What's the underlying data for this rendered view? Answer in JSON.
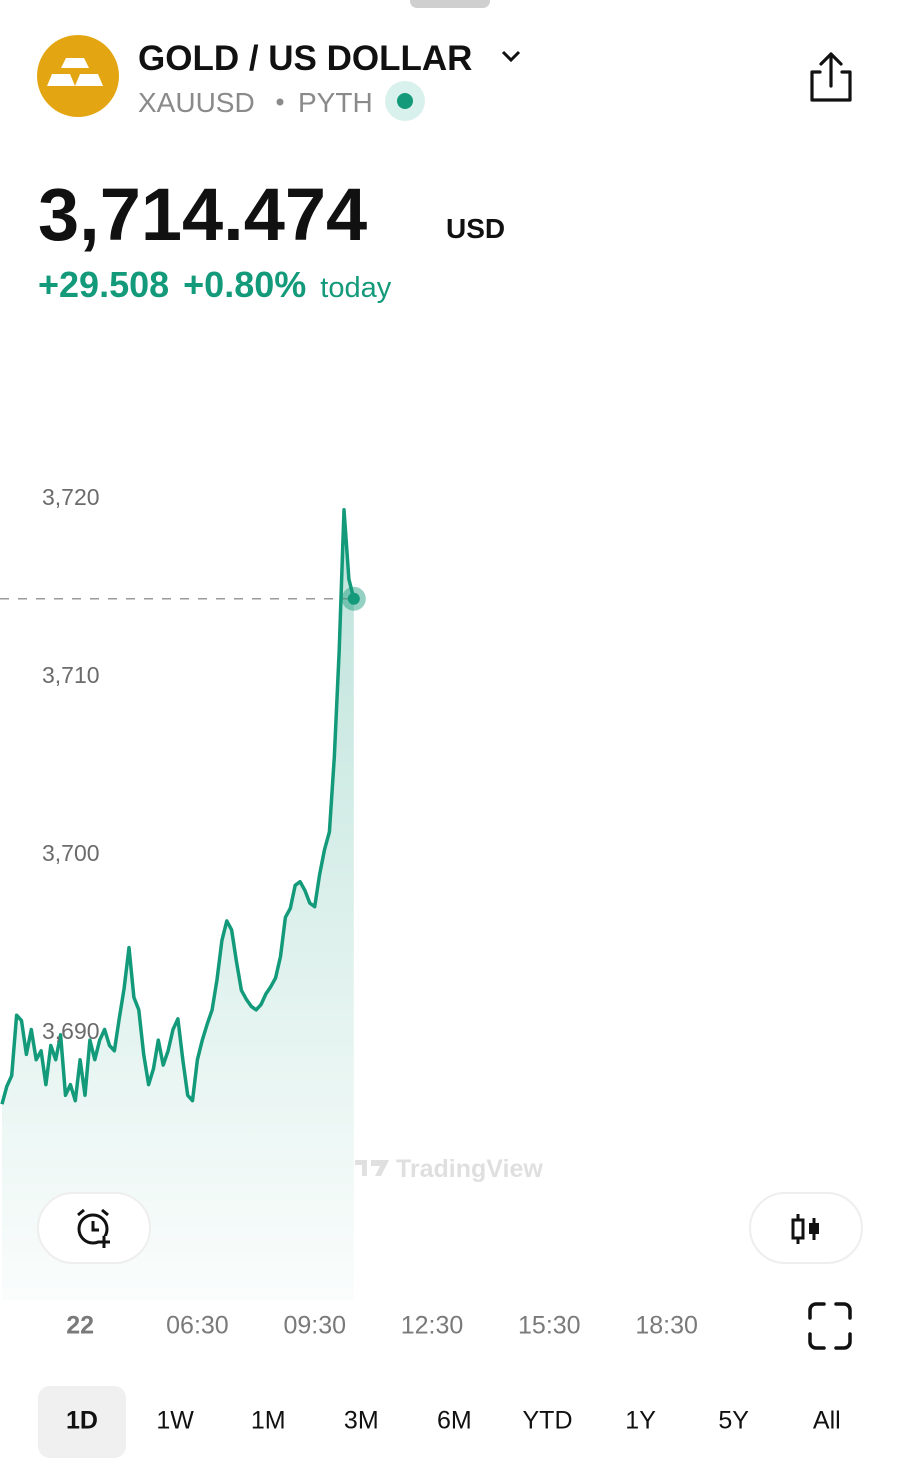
{
  "header": {
    "title": "GOLD / US DOLLAR",
    "symbol": "XAUUSD",
    "source": "PYTH"
  },
  "price": {
    "value": "3,714.474",
    "currency": "USD",
    "change": "+29.508",
    "change_percent": "+0.80%",
    "period": "today"
  },
  "chart_data": {
    "type": "line",
    "x": [
      1.5,
      1.625,
      1.75,
      1.875,
      2,
      2.125,
      2.25,
      2.375,
      2.5,
      2.625,
      2.75,
      2.875,
      3,
      3.125,
      3.25,
      3.375,
      3.5,
      3.625,
      3.75,
      3.875,
      4,
      4.125,
      4.25,
      4.375,
      4.5,
      4.625,
      4.75,
      4.875,
      5,
      5.125,
      5.25,
      5.375,
      5.5,
      5.625,
      5.75,
      5.875,
      6,
      6.125,
      6.25,
      6.375,
      6.5,
      6.625,
      6.75,
      6.875,
      7,
      7.125,
      7.25,
      7.375,
      7.5,
      7.625,
      7.75,
      7.875,
      8,
      8.125,
      8.25,
      8.375,
      8.5,
      8.625,
      8.75,
      8.875,
      9,
      9.125,
      9.25,
      9.375,
      9.5,
      9.625,
      9.75,
      9.875,
      10,
      10.125,
      10.25,
      10.375,
      10.5
    ],
    "series": [
      {
        "color": "#139a7a",
        "values": [
          3686.0,
          3687.0,
          3687.6,
          3691.0,
          3690.7,
          3688.8,
          3690.2,
          3688.5,
          3689.0,
          3687.1,
          3689.3,
          3688.5,
          3689.9,
          3686.5,
          3687.1,
          3686.2,
          3688.5,
          3686.5,
          3689.6,
          3688.5,
          3689.6,
          3690.2,
          3689.3,
          3689.0,
          3690.8,
          3692.5,
          3694.8,
          3692.0,
          3691.3,
          3688.8,
          3687.1,
          3688.0,
          3689.6,
          3688.2,
          3689.0,
          3690.2,
          3690.8,
          3688.5,
          3686.5,
          3686.2,
          3688.5,
          3689.6,
          3690.5,
          3691.3,
          3693.0,
          3695.2,
          3696.3,
          3695.8,
          3694.0,
          3692.4,
          3691.9,
          3691.5,
          3691.3,
          3691.6,
          3692.2,
          3692.6,
          3693.1,
          3694.3,
          3696.5,
          3697.0,
          3698.3,
          3698.5,
          3698.0,
          3697.3,
          3697.1,
          3698.9,
          3700.3,
          3701.3,
          3705.5,
          3711.5,
          3719.4,
          3715.5,
          3714.4
        ]
      }
    ],
    "xlim": [
      1.45,
      24.47
    ],
    "xticks": [
      {
        "value": 3.5,
        "label": "22"
      },
      {
        "value": 6.5,
        "label": "06:30"
      },
      {
        "value": 9.5,
        "label": "09:30"
      },
      {
        "value": 12.5,
        "label": "12:30"
      },
      {
        "value": 15.5,
        "label": "15:30"
      },
      {
        "value": 18.5,
        "label": "18:30"
      }
    ],
    "ylim": [
      3675,
      3729.5
    ],
    "yticks": [
      {
        "value": 3690,
        "label": "3,690"
      },
      {
        "value": 3700,
        "label": "3,700"
      },
      {
        "value": 3710,
        "label": "3,710"
      },
      {
        "value": 3720,
        "label": "3,720"
      }
    ],
    "grid": false
  },
  "watermark": "TradingView",
  "ranges": [
    "1D",
    "1W",
    "1M",
    "3M",
    "6M",
    "YTD",
    "1Y",
    "5Y",
    "All"
  ],
  "selected_range": 0
}
